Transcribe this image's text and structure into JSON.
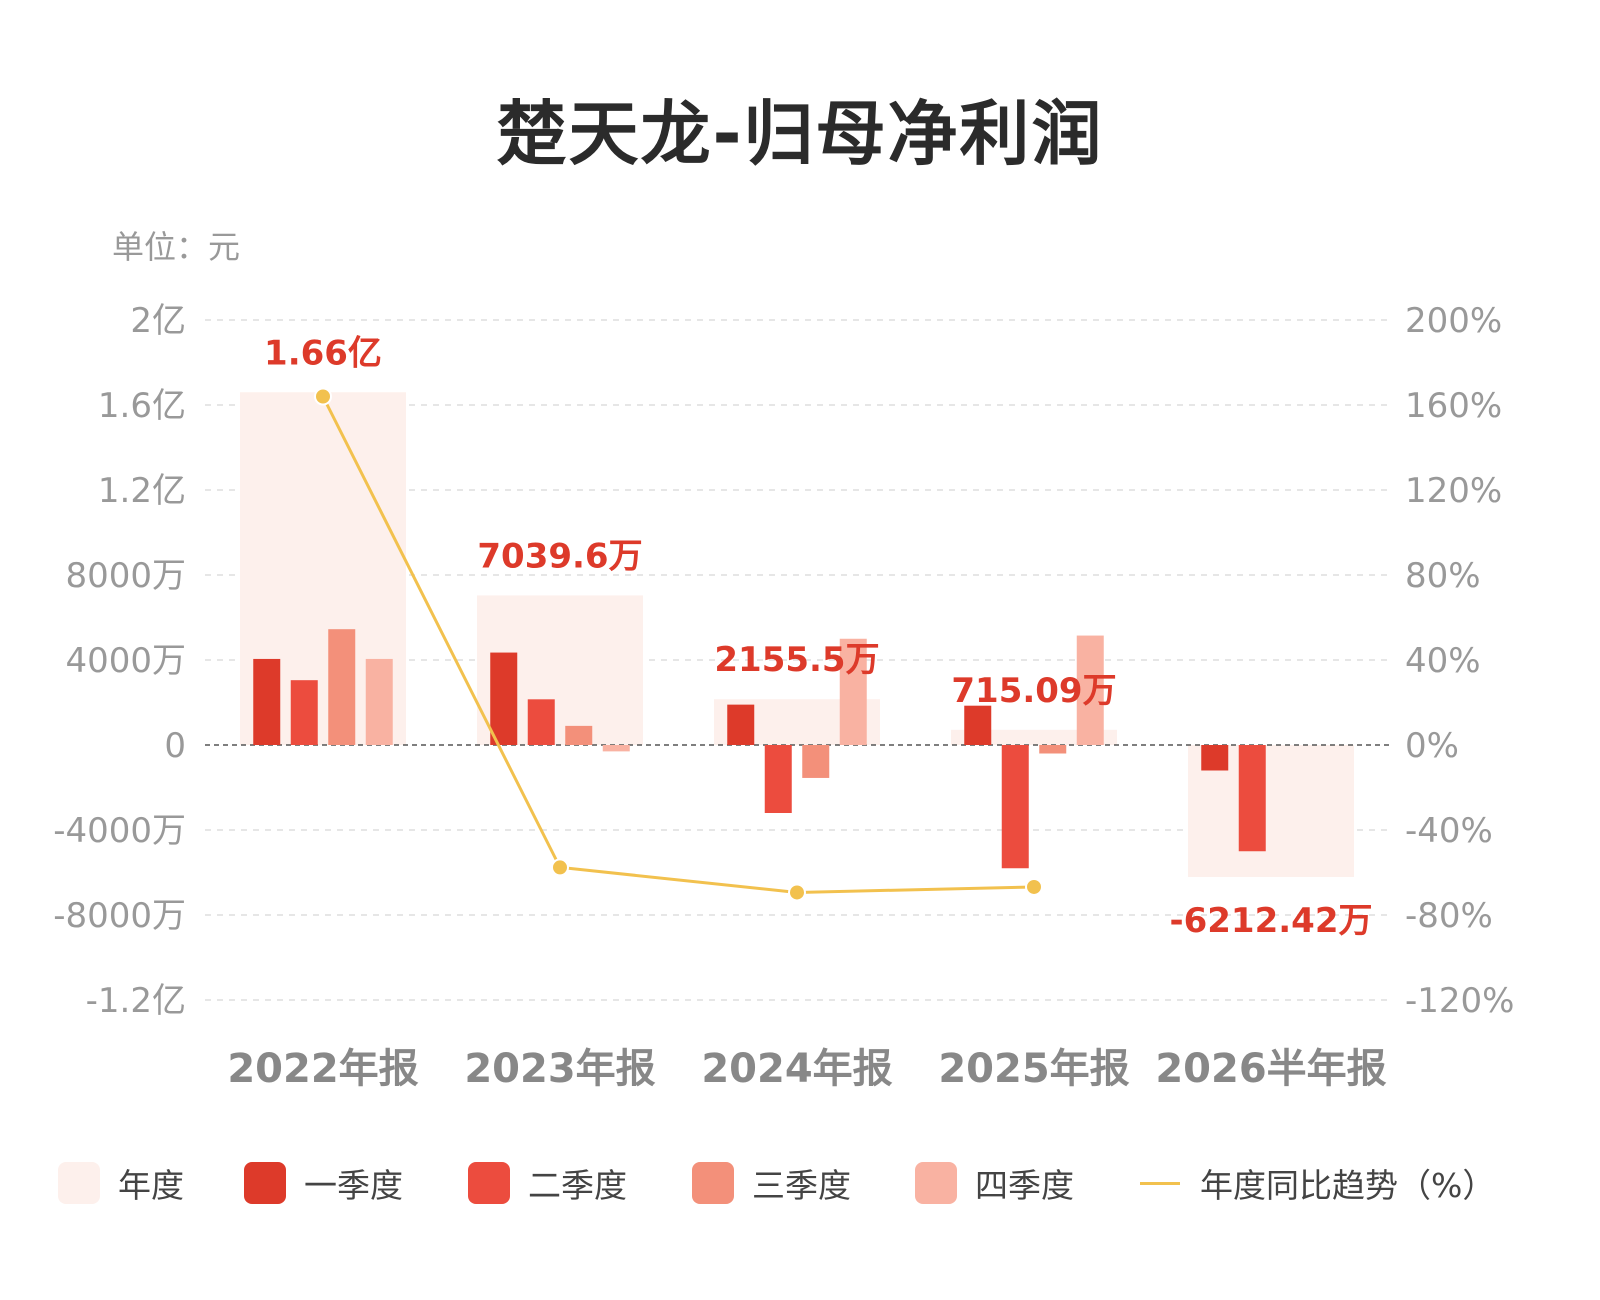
{
  "title": "楚天龙-归母净利润",
  "unit_label": "单位：元",
  "colors": {
    "annual": "#fdf0ec",
    "q1": "#dd3a2a",
    "q2": "#ec4c3e",
    "q3": "#f3907a",
    "q4": "#f9b2a2",
    "trend": "#f2c14e",
    "value_label": "#dd3a2a"
  },
  "legend": [
    {
      "key": "annual",
      "label": "年度"
    },
    {
      "key": "q1",
      "label": "一季度"
    },
    {
      "key": "q2",
      "label": "二季度"
    },
    {
      "key": "q3",
      "label": "三季度"
    },
    {
      "key": "q4",
      "label": "四季度"
    },
    {
      "key": "trend",
      "label": "年度同比趋势（%）"
    }
  ],
  "chart_data": {
    "type": "bar",
    "categories": [
      "2022年报",
      "2023年报",
      "2024年报",
      "2025年报",
      "2026半年报"
    ],
    "annual_values": [
      166000000,
      70396000,
      21555000,
      7150900,
      -62124200
    ],
    "annual_labels": [
      "1.66亿",
      "7039.6万",
      "2155.5万",
      "715.09万",
      "-6212.42万"
    ],
    "series": [
      {
        "name": "一季度",
        "key": "q1",
        "values": [
          40500000,
          43500000,
          19000000,
          18500000,
          -12000000
        ]
      },
      {
        "name": "二季度",
        "key": "q2",
        "values": [
          30500000,
          21500000,
          -32000000,
          -58000000,
          -50000000
        ]
      },
      {
        "name": "三季度",
        "key": "q3",
        "values": [
          54500000,
          9000000,
          -15500000,
          -4000000,
          null
        ]
      },
      {
        "name": "四季度",
        "key": "q4",
        "values": [
          40500000,
          -3000000,
          50000000,
          51500000,
          null
        ]
      }
    ],
    "trend": {
      "name": "年度同比趋势（%）",
      "values": [
        164,
        -57.6,
        -69.4,
        -66.8,
        null
      ]
    },
    "y_left": {
      "min": -120000000,
      "max": 200000000,
      "ticks": [
        200000000,
        160000000,
        120000000,
        80000000,
        40000000,
        0,
        -40000000,
        -80000000,
        -120000000
      ],
      "tick_labels": [
        "2亿",
        "1.6亿",
        "1.2亿",
        "8000万",
        "4000万",
        "0",
        "-4000万",
        "-8000万",
        "-1.2亿"
      ]
    },
    "y_right": {
      "min": -120,
      "max": 200,
      "ticks": [
        200,
        160,
        120,
        80,
        40,
        0,
        -40,
        -80,
        -120
      ],
      "tick_labels": [
        "200%",
        "160%",
        "120%",
        "80%",
        "40%",
        "0%",
        "-40%",
        "-80%",
        "-120%"
      ]
    },
    "grid": true
  }
}
